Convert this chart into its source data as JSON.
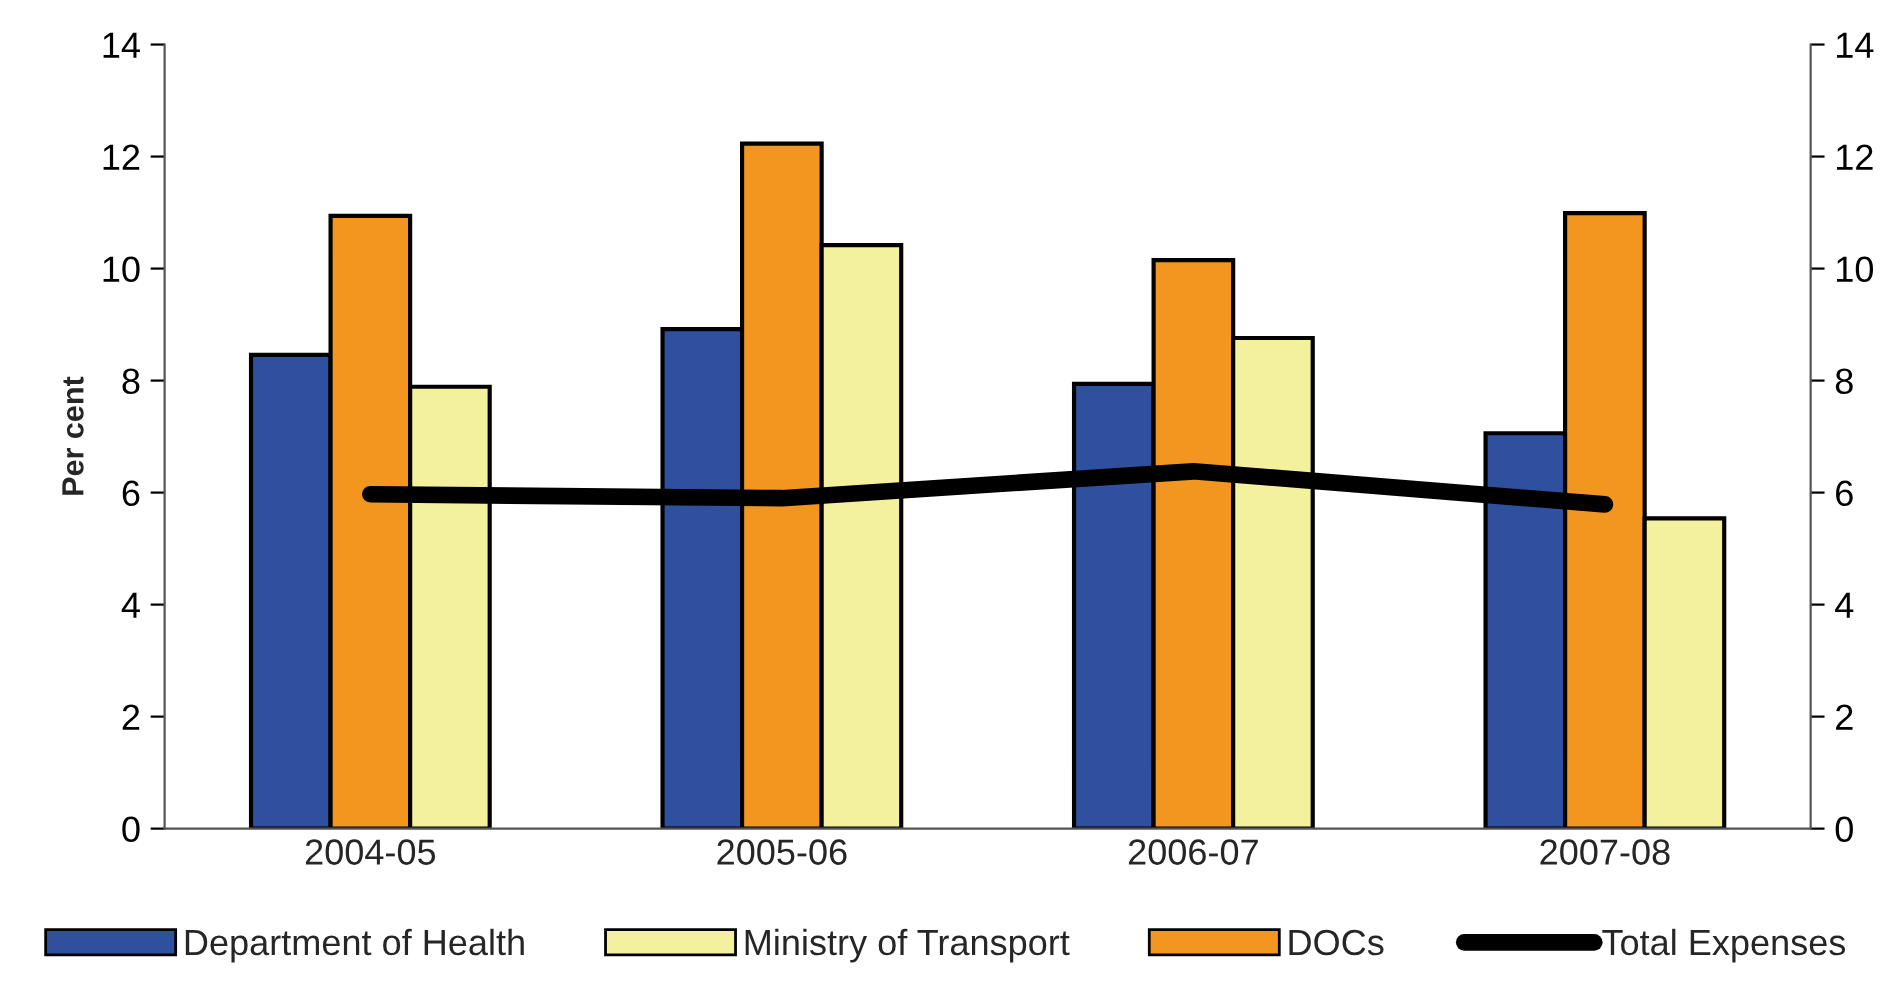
{
  "chart_data": {
    "type": "bar",
    "ylabel": "Per cent",
    "categories": [
      "2004-05",
      "2005-06",
      "2006-07",
      "2007-08"
    ],
    "series": [
      {
        "name": "Department of Health",
        "color": "#2f4f9f",
        "values": [
          8.46,
          8.92,
          7.94,
          7.06
        ]
      },
      {
        "name": "DOCs",
        "color": "#f39620",
        "values": [
          10.94,
          12.23,
          10.15,
          10.99
        ]
      },
      {
        "name": "Ministry of Transport",
        "color": "#f3f09e",
        "values": [
          7.89,
          10.42,
          8.76,
          5.54
        ]
      },
      {
        "name": "Total Expenses",
        "type": "line",
        "color": "#000000",
        "values": [
          5.97,
          5.9,
          6.38,
          5.79
        ]
      }
    ],
    "ylim": [
      0,
      14
    ],
    "yticks": [
      0,
      2,
      4,
      6,
      8,
      10,
      12,
      14
    ],
    "y2lim": [
      0,
      14
    ],
    "y2ticks": [
      0,
      2,
      4,
      6,
      8,
      10,
      12,
      14
    ],
    "grid": false,
    "legend": "bottom",
    "marker": "none",
    "line_style": "solid"
  }
}
